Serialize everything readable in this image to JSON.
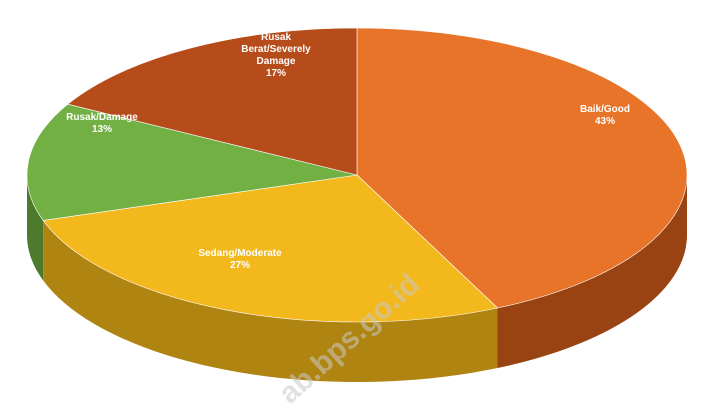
{
  "chart_data": {
    "type": "pie",
    "style": "3d",
    "slices": [
      {
        "label": "Baik/Good",
        "value": 43,
        "value_text": "43%",
        "color": "#e8742a",
        "side_color": "#9a4312"
      },
      {
        "label": "Sedang/Moderate",
        "value": 27,
        "value_text": "27%",
        "color": "#f2b81c",
        "side_color": "#b08411"
      },
      {
        "label": "Rusak/Damage",
        "value": 13,
        "value_text": "13%",
        "color": "#72b043",
        "side_color": "#4d7a2b"
      },
      {
        "label": "Rusak Berat/Severely Damage",
        "label_lines": [
          "Rusak",
          "Berat/Severely",
          "Damage"
        ],
        "value": 17,
        "value_text": "17%",
        "color": "#b64c19",
        "side_color": "#7a300d"
      }
    ]
  },
  "watermark": "ab.bps.go.id"
}
